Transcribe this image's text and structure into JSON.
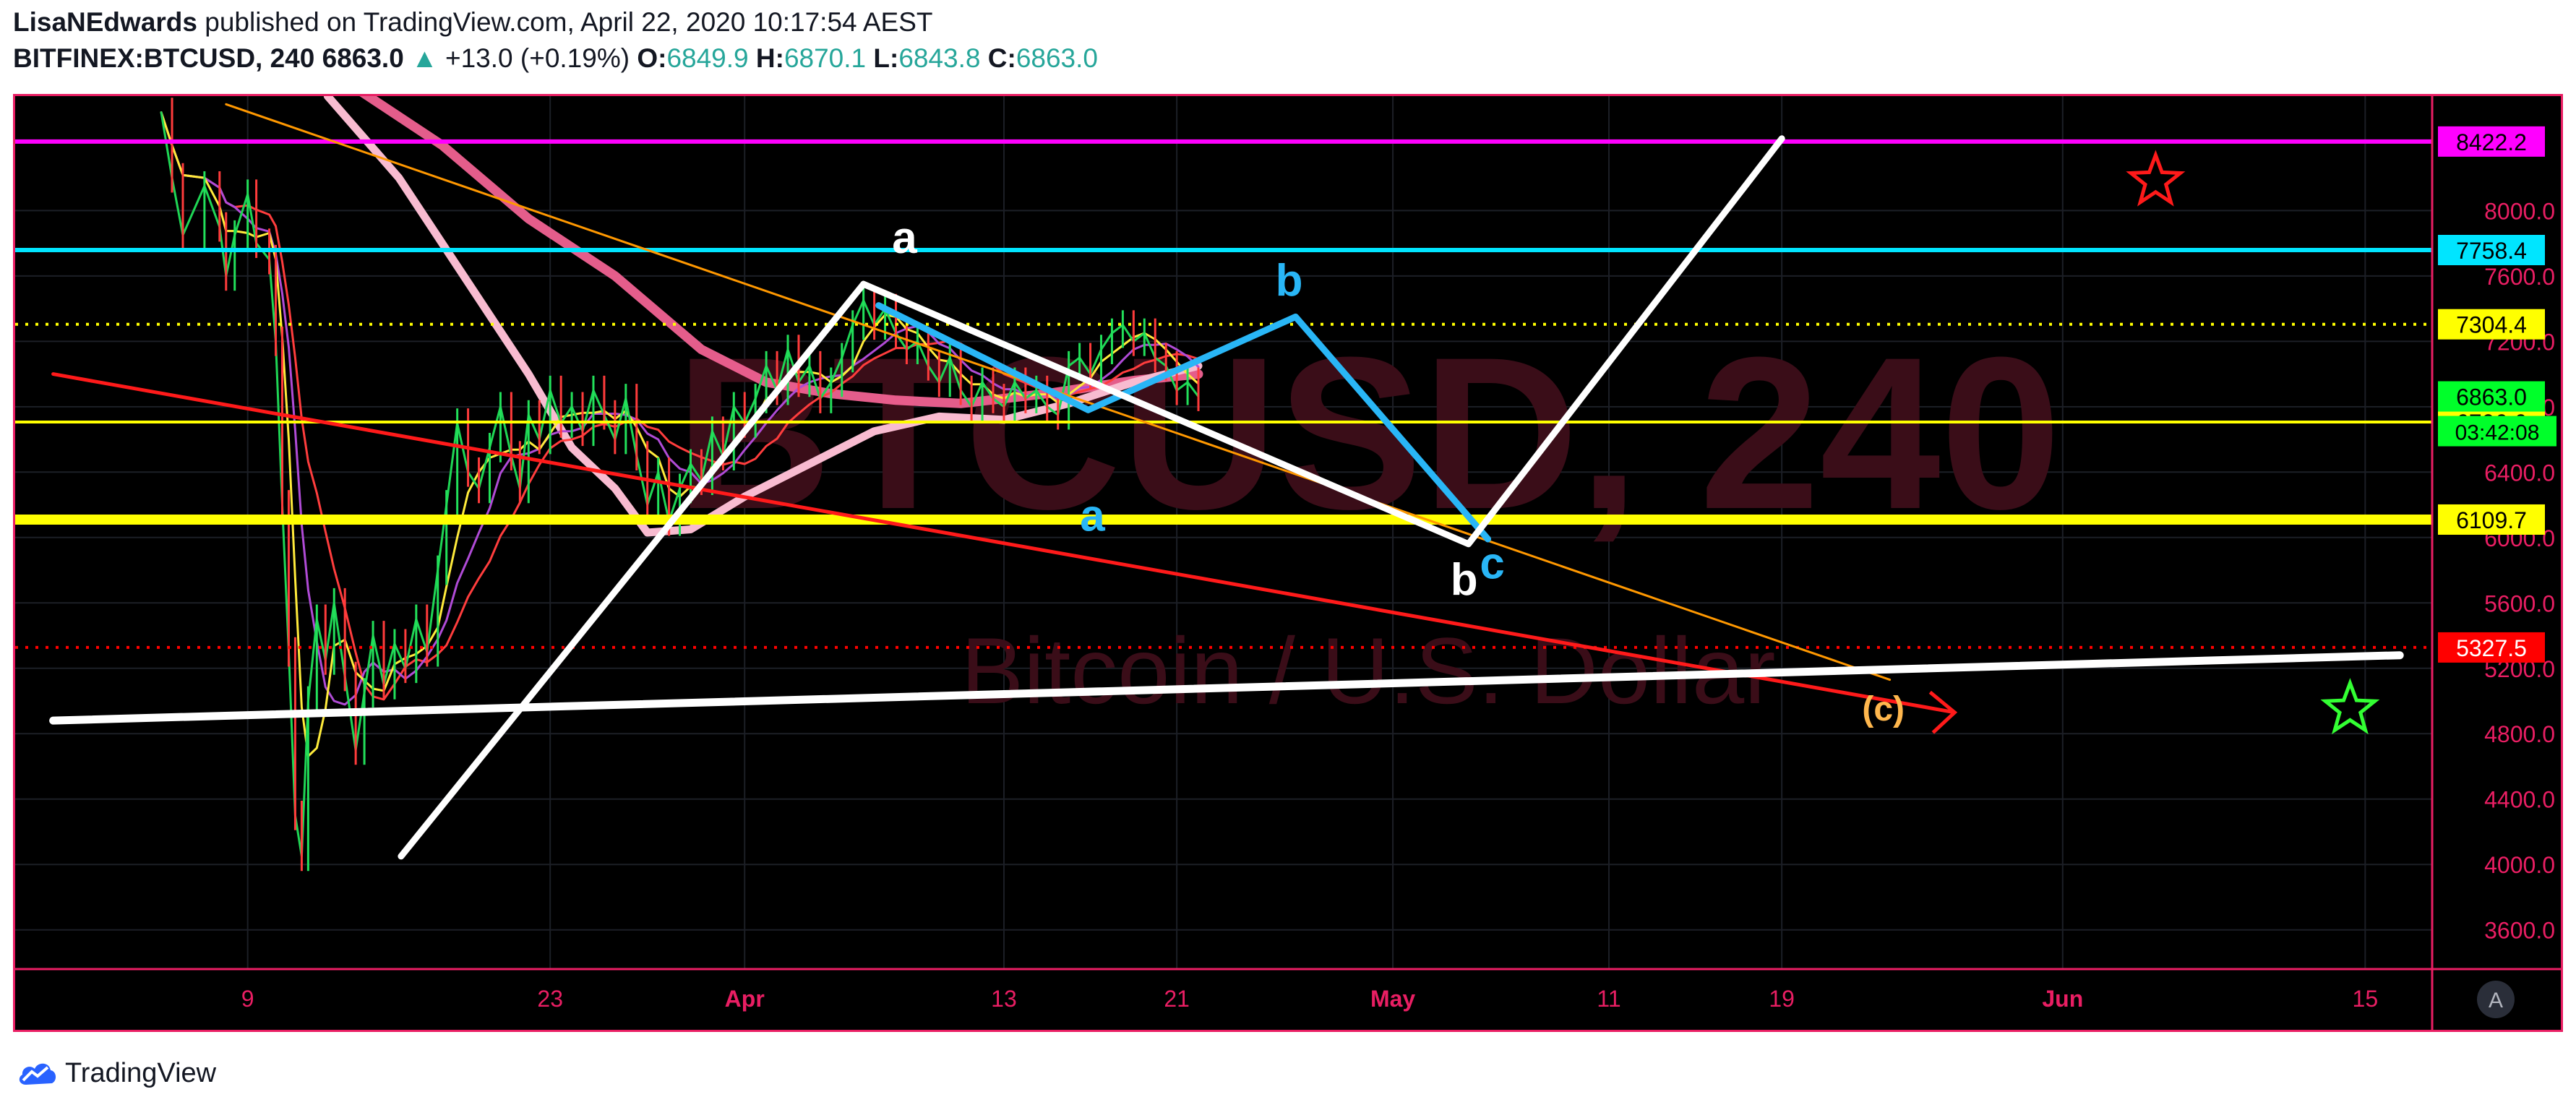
{
  "header": {
    "author": "LisaNEdwards",
    "published_text": "published on TradingView.com, April 22, 2020 10:17:54 AEST",
    "symbol": "BITFINEX:BTCUSD, 240",
    "last": "6863.0",
    "change_arrow": "▲",
    "change": "+13.0 (+0.19%)",
    "o_label": "O:",
    "o_value": "6849.9",
    "h_label": "H:",
    "h_value": "6870.1",
    "l_label": "L:",
    "l_value": "6843.8",
    "c_label": "C:",
    "c_value": "6863.0"
  },
  "watermark": {
    "main": "BTCUSD, 240",
    "sub": "Bitcoin / U.S. Dollar"
  },
  "brand": {
    "name": "TradingView",
    "icon": "tradingview-cloud-icon"
  },
  "chart_data": {
    "type": "line",
    "title": "",
    "ylim": [
      3360,
      8700
    ],
    "y_ticks": [
      "8000.0",
      "7600.0",
      "7200.0",
      "6800.0",
      "6400.0",
      "6000.0",
      "5600.0",
      "5200.0",
      "4800.0",
      "4400.0",
      "4000.0",
      "3600.0"
    ],
    "x_ticks": [
      "9",
      "23",
      "Apr",
      "13",
      "21",
      "May",
      "11",
      "19",
      "Jun",
      "15"
    ],
    "x_tick_days": [
      9,
      23,
      32,
      44,
      52,
      62,
      72,
      80,
      93,
      107
    ],
    "x_tick_highlight": [
      "Apr",
      "May",
      "Jun"
    ],
    "grid": true,
    "horizontal_levels": [
      {
        "label": "8422.2",
        "value": 8422.2,
        "color": "#ff00ff",
        "style": "solid",
        "text_color": "#000000"
      },
      {
        "label": "7758.4",
        "value": 7758.4,
        "color": "#00e5ff",
        "style": "solid",
        "text_color": "#000000"
      },
      {
        "label": "7304.4",
        "value": 7304.4,
        "color": "#ffff00",
        "style": "dotted",
        "text_color": "#000000"
      },
      {
        "label": "6706.6",
        "value": 6706.6,
        "color": "#ffff00",
        "style": "solid-thin",
        "text_color": "#000000"
      },
      {
        "label": "6109.7",
        "value": 6109.7,
        "color": "#ffff00",
        "style": "solid-thick",
        "text_color": "#000000"
      },
      {
        "label": "5327.5",
        "value": 5327.5,
        "color": "#ff0000",
        "style": "dotted",
        "text_color": "#ffffff"
      }
    ],
    "price_label": {
      "label": "6863.0",
      "value": 6863.0,
      "color": "#00ff2a",
      "text_color": "#000000"
    },
    "countdown_label": "03:42:08",
    "wave_labels": [
      {
        "text": "a",
        "x": 39.4,
        "y": 7740,
        "color": "#ffffff"
      },
      {
        "text": "b",
        "x": 57.2,
        "y": 7480,
        "color": "#29b6f6"
      },
      {
        "text": "a",
        "x": 48.1,
        "y": 6040,
        "color": "#29b6f6"
      },
      {
        "text": "b",
        "x": 65.3,
        "y": 5650,
        "color": "#ffffff"
      },
      {
        "text": "c",
        "x": 66.6,
        "y": 5750,
        "color": "#29b6f6"
      },
      {
        "text": "(c)",
        "x": 84.7,
        "y": 4880,
        "color": "#ffb74d"
      }
    ],
    "stars": [
      {
        "x": 97.3,
        "y": 8180,
        "color": "#ff1a1a"
      },
      {
        "x": 106.3,
        "y": 4950,
        "color": "#33ff33"
      }
    ],
    "white_path": [
      [
        16.1,
        4050
      ],
      [
        37.5,
        7550
      ],
      [
        65.5,
        5960
      ],
      [
        80,
        8440
      ]
    ],
    "blue_path": [
      [
        38.2,
        7420
      ],
      [
        47.9,
        6780
      ],
      [
        57.5,
        7350
      ],
      [
        66.4,
        5990
      ]
    ],
    "white_support": [
      [
        0,
        4880
      ],
      [
        108.6,
        5280
      ]
    ],
    "red_trend": [
      [
        0,
        7000
      ],
      [
        88,
        4930
      ]
    ],
    "red_arrow_tip": [
      88,
      4930
    ],
    "orange_trend": [
      [
        8,
        8650
      ],
      [
        85,
        5130
      ]
    ],
    "ma_thick_pink": [
      [
        14,
        8750
      ],
      [
        18,
        8400
      ],
      [
        22,
        7950
      ],
      [
        26,
        7600
      ],
      [
        30,
        7150
      ],
      [
        33,
        6950
      ],
      [
        36,
        6880
      ],
      [
        39,
        6840
      ],
      [
        42,
        6820
      ],
      [
        46,
        6880
      ],
      [
        50,
        6960
      ],
      [
        53,
        7000
      ]
    ],
    "ma_light_pink": [
      [
        12.7,
        8700
      ],
      [
        16,
        8200
      ],
      [
        19,
        7600
      ],
      [
        22,
        7000
      ],
      [
        24,
        6550
      ],
      [
        26,
        6300
      ],
      [
        27.5,
        6030
      ],
      [
        29.5,
        6050
      ],
      [
        32,
        6250
      ],
      [
        35,
        6450
      ],
      [
        38,
        6650
      ],
      [
        41,
        6740
      ],
      [
        44,
        6720
      ],
      [
        47,
        6820
      ],
      [
        50,
        6950
      ],
      [
        53,
        7050
      ]
    ],
    "price_series": [
      [
        5,
        8600
      ],
      [
        5.5,
        8200
      ],
      [
        6,
        7850
      ],
      [
        7,
        8150
      ],
      [
        7.7,
        7900
      ],
      [
        8,
        7600
      ],
      [
        8.4,
        7850
      ],
      [
        9,
        8100
      ],
      [
        9.4,
        7800
      ],
      [
        10,
        7700
      ],
      [
        10.3,
        7200
      ],
      [
        10.6,
        6200
      ],
      [
        10.9,
        5300
      ],
      [
        11.2,
        4300
      ],
      [
        11.5,
        4050
      ],
      [
        11.8,
        5000
      ],
      [
        12.2,
        5500
      ],
      [
        12.6,
        5250
      ],
      [
        13,
        5600
      ],
      [
        13.5,
        5150
      ],
      [
        14,
        4700
      ],
      [
        14.4,
        5050
      ],
      [
        14.8,
        5400
      ],
      [
        15.3,
        5100
      ],
      [
        15.8,
        5350
      ],
      [
        16.3,
        5200
      ],
      [
        16.8,
        5500
      ],
      [
        17.3,
        5300
      ],
      [
        17.8,
        5800
      ],
      [
        18.2,
        6200
      ],
      [
        18.7,
        6700
      ],
      [
        19.2,
        6400
      ],
      [
        19.7,
        6300
      ],
      [
        20.2,
        6550
      ],
      [
        20.7,
        6800
      ],
      [
        21.2,
        6500
      ],
      [
        21.6,
        6300
      ],
      [
        22,
        6750
      ],
      [
        22.5,
        6600
      ],
      [
        23,
        6900
      ],
      [
        23.5,
        6700
      ],
      [
        24,
        6800
      ],
      [
        24.5,
        6650
      ],
      [
        25,
        6900
      ],
      [
        25.5,
        6750
      ],
      [
        26,
        6600
      ],
      [
        26.5,
        6850
      ],
      [
        27,
        6500
      ],
      [
        27.5,
        6200
      ],
      [
        28,
        6400
      ],
      [
        28.5,
        6100
      ],
      [
        29,
        6300
      ],
      [
        29.5,
        6450
      ],
      [
        30,
        6350
      ],
      [
        30.5,
        6650
      ],
      [
        31,
        6500
      ],
      [
        31.5,
        6800
      ],
      [
        32,
        6700
      ],
      [
        32.5,
        6850
      ],
      [
        33,
        7050
      ],
      [
        33.5,
        6900
      ],
      [
        34,
        7150
      ],
      [
        34.5,
        6950
      ],
      [
        35,
        7050
      ],
      [
        35.5,
        6850
      ],
      [
        36,
        6950
      ],
      [
        36.5,
        7100
      ],
      [
        37,
        7300
      ],
      [
        37.5,
        7450
      ],
      [
        38,
        7300
      ],
      [
        38.5,
        7400
      ],
      [
        39,
        7250
      ],
      [
        39.5,
        7150
      ],
      [
        40,
        7200
      ],
      [
        40.5,
        7050
      ],
      [
        41,
        6950
      ],
      [
        41.5,
        7100
      ],
      [
        42,
        6900
      ],
      [
        42.5,
        6800
      ],
      [
        43,
        6950
      ],
      [
        43.5,
        6850
      ],
      [
        44,
        6800
      ],
      [
        44.5,
        6950
      ],
      [
        45,
        6850
      ],
      [
        45.5,
        6900
      ],
      [
        46,
        6800
      ],
      [
        46.5,
        6750
      ],
      [
        47,
        7050
      ],
      [
        47.5,
        7100
      ],
      [
        48,
        7000
      ],
      [
        48.5,
        7150
      ],
      [
        49,
        7250
      ],
      [
        49.5,
        7300
      ],
      [
        50,
        7200
      ],
      [
        50.5,
        7250
      ],
      [
        51,
        7100
      ],
      [
        51.5,
        7050
      ],
      [
        52,
        6900
      ],
      [
        52.5,
        6950
      ],
      [
        53,
        6863
      ]
    ]
  }
}
